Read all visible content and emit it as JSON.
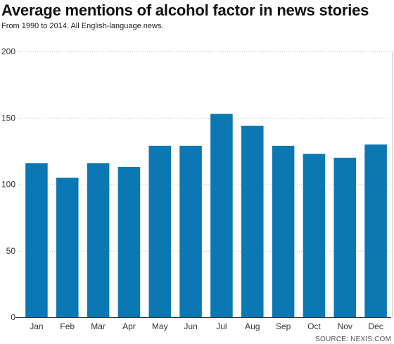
{
  "chart_data": {
    "type": "bar",
    "title": "Average mentions of alcohol factor in news stories",
    "subtitle": "From 1990 to 2014. All English-language news.",
    "source": "SOURCE: NEXIS.COM",
    "categories": [
      "Jan",
      "Feb",
      "Mar",
      "Apr",
      "May",
      "Jun",
      "Jul",
      "Aug",
      "Sep",
      "Oct",
      "Nov",
      "Dec"
    ],
    "values": [
      116,
      105,
      116,
      113,
      129,
      129,
      153,
      144,
      129,
      123,
      120,
      130
    ],
    "ylim": [
      0,
      200
    ],
    "yticks": [
      0,
      50,
      100,
      150,
      200
    ],
    "xlabel": "",
    "ylabel": "",
    "grid": "horizontal dotted",
    "bar_color": "#0b78b4"
  }
}
